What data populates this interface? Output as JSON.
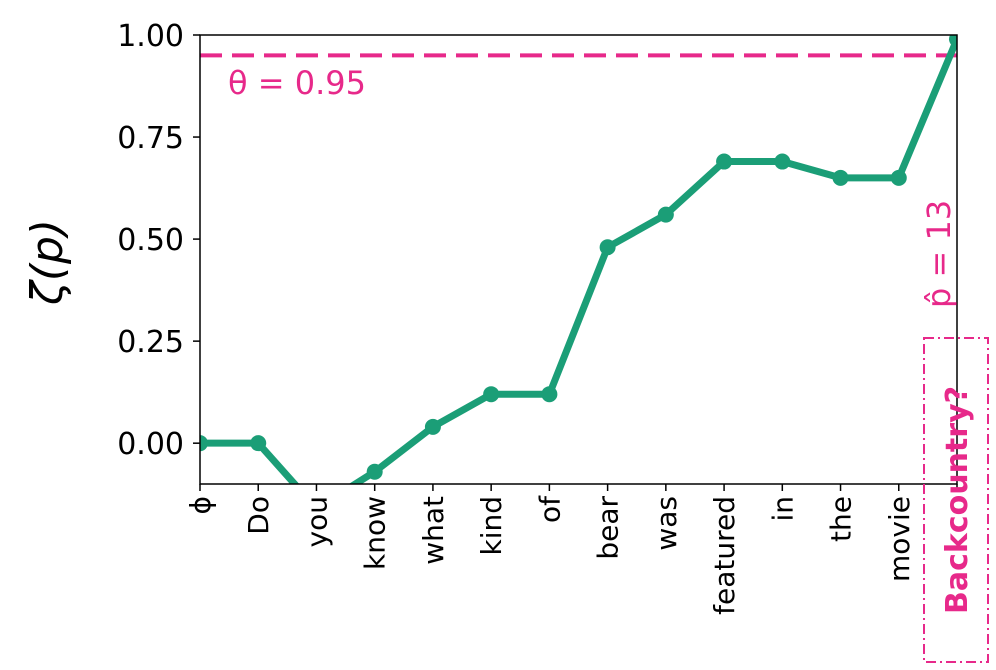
{
  "chart_data": {
    "type": "line",
    "title": "",
    "xlabel": "",
    "ylabel": "ζ(p)",
    "categories": [
      "ϕ",
      "Do",
      "you",
      "know",
      "what",
      "kind",
      "of",
      "bear",
      "was",
      "featured",
      "in",
      "the",
      "movie",
      "Backcountry?"
    ],
    "values": [
      0.0,
      0.0,
      -0.16,
      -0.07,
      0.04,
      0.12,
      0.12,
      0.48,
      0.56,
      0.69,
      0.69,
      0.65,
      0.65,
      0.99
    ],
    "ylim": [
      -0.1,
      1.0
    ],
    "yticks": [
      "0.00",
      "0.25",
      "0.50",
      "0.75",
      "1.00"
    ],
    "threshold": {
      "value": 0.95,
      "label": "θ = 0.95"
    },
    "stop_annotation": "p̂ = 13",
    "answer_label": "Backcountry?",
    "grid": false,
    "colors": {
      "line": "#1b9e77",
      "threshold": "#e7298a",
      "answer": "#e7298a",
      "axes": "#000000"
    }
  }
}
